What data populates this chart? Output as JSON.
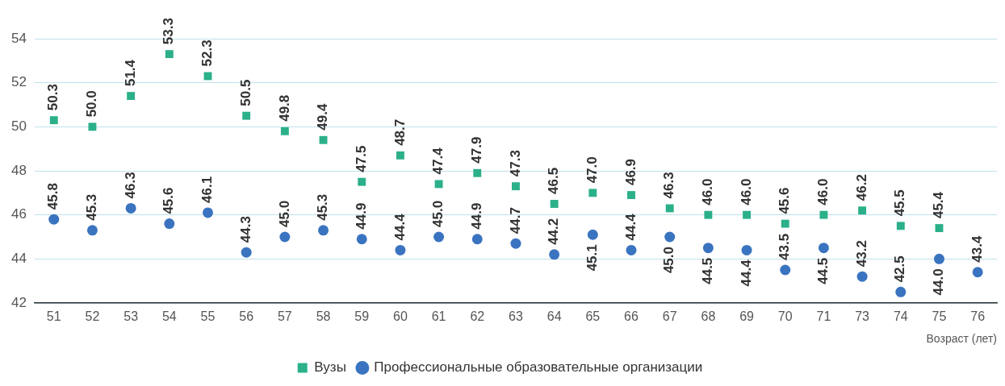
{
  "chart_data": {
    "type": "scatter",
    "xlabel": "Возраст (лет)",
    "categories": [
      "51",
      "52",
      "53",
      "54",
      "55",
      "56",
      "57",
      "58",
      "59",
      "60",
      "61",
      "62",
      "63",
      "64",
      "65",
      "66",
      "67",
      "68",
      "69",
      "70",
      "71",
      "73",
      "74",
      "75",
      "76"
    ],
    "series": [
      {
        "name": "Вузы",
        "color": "#2bb08a",
        "marker": "square",
        "values": [
          50.3,
          50.0,
          51.4,
          53.3,
          52.3,
          50.5,
          49.8,
          49.4,
          47.5,
          48.7,
          47.4,
          47.9,
          47.3,
          46.5,
          47.0,
          46.9,
          46.3,
          46.0,
          46.0,
          45.6,
          46.0,
          46.2,
          45.5,
          45.4,
          null
        ],
        "value_labels": [
          "50.3",
          "50.0",
          "51.4",
          "53.3",
          "52.3",
          "50.5",
          "49.8",
          "49.4",
          "47.5",
          "48.7",
          "47.4",
          "47.9",
          "47.3",
          "46.5",
          "47.0",
          "46.9",
          "46.3",
          "46.0",
          "46.0",
          "45.6",
          "46.0",
          "46.2",
          "45.5",
          "45.4",
          null
        ]
      },
      {
        "name": "Профессиональные образовательные организации",
        "color": "#3a74c0",
        "marker": "circle",
        "values": [
          45.8,
          45.3,
          46.3,
          45.6,
          46.1,
          44.3,
          45.0,
          45.3,
          44.9,
          44.4,
          45.0,
          44.9,
          44.7,
          44.2,
          45.1,
          44.4,
          45.0,
          44.5,
          44.4,
          43.5,
          44.5,
          43.2,
          42.5,
          44.0,
          43.4
        ],
        "value_labels": [
          "45.8",
          "45.3",
          "46.3",
          "45.6",
          "46.1",
          "44.3",
          "45.0",
          "45.3",
          "44.9",
          "44.4",
          "45.0",
          "44.9",
          "44.7",
          "44.2",
          "45.1",
          "44.4",
          "45.0",
          "44.5",
          "44.4",
          "43.5",
          "44.5",
          "43.2",
          "42.5",
          "44.0",
          "43.4"
        ]
      }
    ],
    "ylim": [
      42,
      54
    ],
    "yticks": [
      42,
      44,
      46,
      48,
      50,
      52,
      54
    ],
    "grid": "y",
    "legend": "bottom"
  }
}
